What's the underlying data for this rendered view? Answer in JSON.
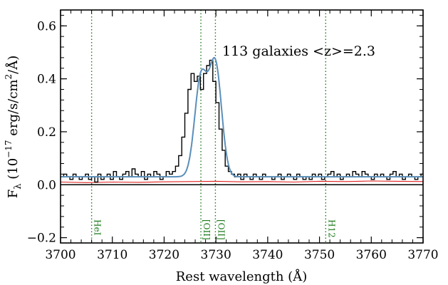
{
  "chart_data": {
    "type": "line",
    "title": "",
    "annotation": "113 galaxies <z>=2.3",
    "xlabel": "Rest wavelength (Å)",
    "ylabel": "F_λ (10^-17 erg/s/cm²/Å)",
    "ylabel_parts": {
      "f": "F",
      "lambda": "λ",
      "open": " (10",
      "exp": "−17",
      "unit": " erg/s/cm",
      "exp2": "2",
      "close": "/Å)"
    },
    "xlim": [
      3700,
      3770
    ],
    "ylim": [
      -0.22,
      0.66
    ],
    "xticks": [
      3700,
      3710,
      3720,
      3730,
      3740,
      3750,
      3760,
      3770
    ],
    "xtick_labels": [
      "3700",
      "3710",
      "3720",
      "3730",
      "3740",
      "3750",
      "3760",
      "3770"
    ],
    "yticks": [
      -0.2,
      0.0,
      0.2,
      0.4,
      0.6
    ],
    "ytick_labels": [
      "−0.2",
      "0.0",
      "0.2",
      "0.4",
      "0.6"
    ],
    "grid": false,
    "colors": {
      "spectrum": "#000000",
      "fit": "#5b8fb9",
      "error": "#e02020",
      "zero": "#000000",
      "lines": "#1a7a1a"
    },
    "reference_lines": [
      {
        "label": "HeI",
        "x": 3706.0
      },
      {
        "label": "[OII]",
        "x": 3727.1
      },
      {
        "label": "[OII]",
        "x": 3729.9
      },
      {
        "label": "H12",
        "x": 3751.2
      }
    ],
    "series": [
      {
        "role": "spectrum",
        "style": "step",
        "x": [
          3700.0,
          3700.6,
          3701.2,
          3701.8,
          3702.4,
          3703.0,
          3703.6,
          3704.2,
          3704.8,
          3705.4,
          3706.0,
          3706.6,
          3707.2,
          3707.8,
          3708.4,
          3709.0,
          3709.6,
          3710.2,
          3710.8,
          3711.4,
          3712.0,
          3712.6,
          3713.2,
          3713.8,
          3714.4,
          3715.0,
          3715.6,
          3716.2,
          3716.8,
          3717.4,
          3718.0,
          3718.6,
          3719.2,
          3719.8,
          3720.4,
          3721.0,
          3721.6,
          3722.2,
          3722.8,
          3723.4,
          3724.0,
          3724.6,
          3725.2,
          3725.8,
          3726.4,
          3727.0,
          3727.6,
          3728.2,
          3728.8,
          3729.4,
          3730.0,
          3730.6,
          3731.2,
          3731.8,
          3732.4,
          3733.0,
          3733.6,
          3734.2,
          3734.8,
          3735.4,
          3736.0,
          3736.6,
          3737.2,
          3737.8,
          3738.4,
          3739.0,
          3739.6,
          3740.2,
          3740.8,
          3741.4,
          3742.0,
          3742.6,
          3743.2,
          3743.8,
          3744.4,
          3745.0,
          3745.6,
          3746.2,
          3746.8,
          3747.4,
          3748.0,
          3748.6,
          3749.2,
          3749.8,
          3750.4,
          3751.0,
          3751.6,
          3752.2,
          3752.8,
          3753.4,
          3754.0,
          3754.6,
          3755.2,
          3755.8,
          3756.4,
          3757.0,
          3757.6,
          3758.2,
          3758.8,
          3759.4,
          3760.0,
          3760.6,
          3761.2,
          3761.8,
          3762.4,
          3763.0,
          3763.6,
          3764.2,
          3764.8,
          3765.4,
          3766.0,
          3766.6,
          3767.2,
          3767.8,
          3768.4,
          3769.0,
          3769.6
        ],
        "y": [
          0.03,
          0.04,
          0.03,
          0.02,
          0.04,
          0.03,
          0.02,
          0.03,
          0.04,
          0.02,
          0.03,
          0.01,
          0.04,
          0.02,
          0.03,
          0.04,
          0.02,
          0.05,
          0.03,
          0.02,
          0.04,
          0.05,
          0.03,
          0.06,
          0.04,
          0.03,
          0.05,
          0.02,
          0.04,
          0.03,
          0.05,
          0.04,
          0.02,
          0.03,
          0.05,
          0.04,
          0.05,
          0.07,
          0.11,
          0.18,
          0.27,
          0.36,
          0.42,
          0.39,
          0.41,
          0.36,
          0.42,
          0.45,
          0.47,
          0.39,
          0.31,
          0.21,
          0.13,
          0.07,
          0.05,
          0.04,
          0.03,
          0.04,
          0.02,
          0.04,
          0.03,
          0.02,
          0.04,
          0.03,
          0.02,
          0.04,
          0.03,
          0.03,
          0.02,
          0.03,
          0.04,
          0.02,
          0.03,
          0.04,
          0.03,
          0.02,
          0.04,
          0.03,
          0.02,
          0.03,
          0.02,
          0.04,
          0.03,
          0.04,
          0.02,
          0.03,
          0.04,
          0.05,
          0.03,
          0.04,
          0.02,
          0.03,
          0.04,
          0.03,
          0.05,
          0.04,
          0.03,
          0.05,
          0.04,
          0.03,
          0.02,
          0.04,
          0.03,
          0.04,
          0.03,
          0.02,
          0.04,
          0.05,
          0.03,
          0.04,
          0.02,
          0.03,
          0.04,
          0.03,
          0.02,
          0.03,
          0.04
        ]
      },
      {
        "role": "fit",
        "style": "smooth",
        "baseline": 0.03,
        "components": [
          {
            "center": 3727.1,
            "amplitude": 0.37,
            "sigma": 1.2
          },
          {
            "center": 3729.9,
            "amplitude": 0.42,
            "sigma": 1.2
          }
        ]
      },
      {
        "role": "error",
        "style": "line",
        "x": [
          3700,
          3705,
          3710,
          3715,
          3720,
          3725,
          3730,
          3735,
          3740,
          3745,
          3750,
          3755,
          3760,
          3765,
          3770
        ],
        "y": [
          0.01,
          0.008,
          0.01,
          0.009,
          0.011,
          0.012,
          0.013,
          0.011,
          0.012,
          0.01,
          0.013,
          0.012,
          0.014,
          0.013,
          0.012
        ]
      }
    ]
  }
}
